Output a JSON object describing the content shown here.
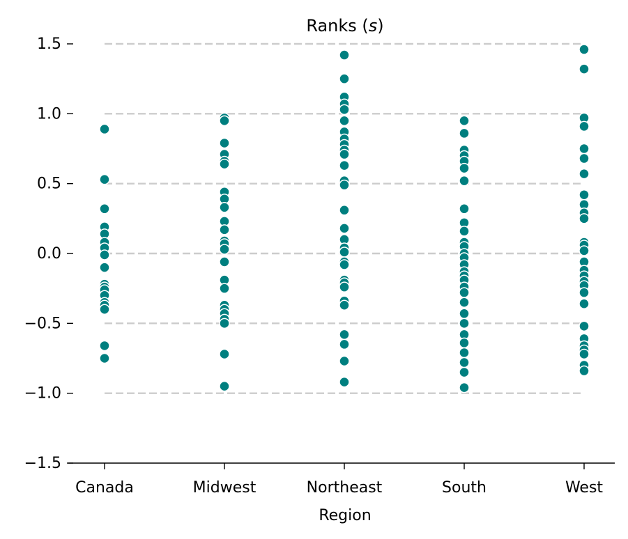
{
  "chart_data": {
    "type": "scatter",
    "title": "Ranks (",
    "title_symbol": "s",
    "title_close": ")",
    "xlabel": "Region",
    "ylabel": "",
    "ylim": [
      -1.5,
      1.5
    ],
    "yticks": [
      1.5,
      1.0,
      0.5,
      0.0,
      -0.5,
      -1.0,
      -1.5
    ],
    "ytick_labels": [
      "1.5",
      "1.0",
      "0.5",
      "0.0",
      "−0.5",
      "−1.0",
      "−1.5"
    ],
    "gridlines": [
      1.5,
      1.0,
      0.5,
      0.0,
      -0.5,
      -1.0
    ],
    "grid": "horizontal dashed",
    "categories": [
      "Canada",
      "Midwest",
      "Northeast",
      "South",
      "West"
    ],
    "marker_color": "#007f7f",
    "marker_edge": "#ffffff",
    "grid_color": "#cccccc",
    "points": [
      [
        0.89,
        0.53,
        0.32,
        0.19,
        0.14,
        0.08,
        0.04,
        -0.01,
        -0.1,
        -0.22,
        -0.24,
        -0.26,
        -0.3,
        -0.35,
        -0.37,
        -0.4,
        -0.66,
        -0.75
      ],
      [
        0.97,
        0.95,
        0.79,
        0.71,
        0.66,
        0.64,
        0.44,
        0.39,
        0.33,
        0.23,
        0.17,
        0.09,
        0.07,
        0.03,
        -0.06,
        -0.19,
        -0.25,
        -0.37,
        -0.4,
        -0.43,
        -0.47,
        -0.5,
        -0.72,
        -0.95
      ],
      [
        1.42,
        1.25,
        1.12,
        1.07,
        1.03,
        0.95,
        0.87,
        0.82,
        0.78,
        0.74,
        0.71,
        0.63,
        0.52,
        0.49,
        0.31,
        0.18,
        0.1,
        0.04,
        0.01,
        -0.06,
        -0.08,
        -0.19,
        -0.21,
        -0.24,
        -0.34,
        -0.37,
        -0.58,
        -0.65,
        -0.77,
        -0.92
      ],
      [
        0.95,
        0.86,
        0.74,
        0.7,
        0.66,
        0.61,
        0.52,
        0.32,
        0.22,
        0.16,
        0.08,
        0.05,
        0.0,
        -0.03,
        -0.08,
        -0.13,
        -0.16,
        -0.19,
        -0.24,
        -0.28,
        -0.35,
        -0.43,
        -0.5,
        -0.58,
        -0.64,
        -0.71,
        -0.78,
        -0.85,
        -0.96
      ],
      [
        1.46,
        1.32,
        0.97,
        0.91,
        0.75,
        0.68,
        0.57,
        0.42,
        0.35,
        0.29,
        0.25,
        0.08,
        0.06,
        0.02,
        -0.06,
        -0.12,
        -0.16,
        -0.2,
        -0.23,
        -0.28,
        -0.36,
        -0.52,
        -0.61,
        -0.66,
        -0.69,
        -0.72,
        -0.8,
        -0.84
      ]
    ]
  }
}
